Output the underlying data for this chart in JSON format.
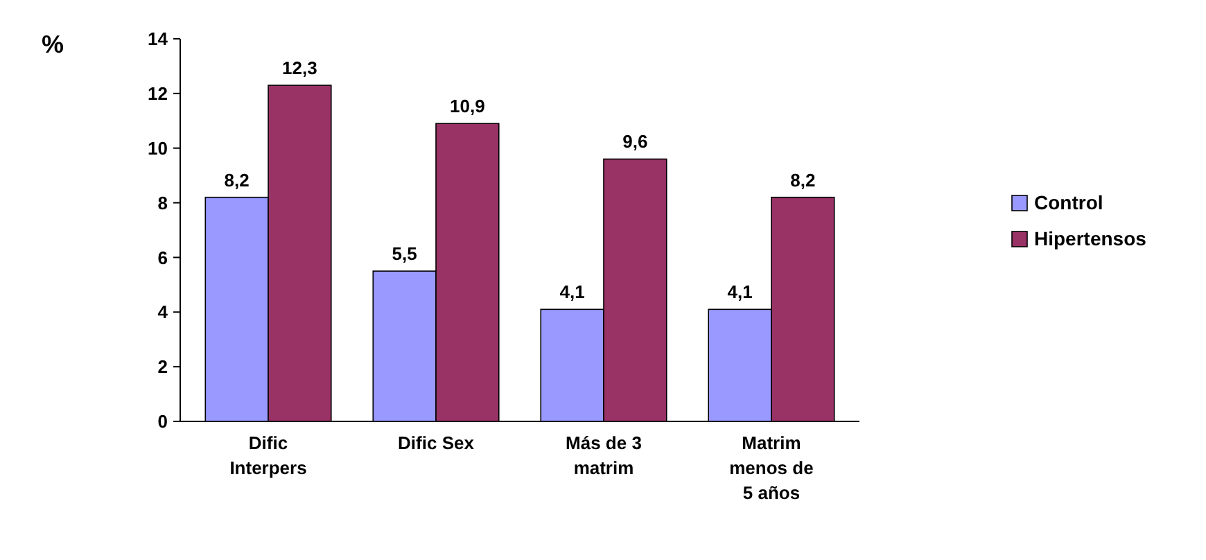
{
  "chart_data": {
    "type": "bar",
    "ylabel": "%",
    "categories": [
      "Dific Interpers",
      "Dific Sex",
      "Más de 3 matrim",
      "Matrim menos de 5 años"
    ],
    "series": [
      {
        "name": "Control",
        "color": "#9999ff",
        "values": [
          8.2,
          5.5,
          4.1,
          4.1
        ],
        "value_labels": [
          "8,2",
          "5,5",
          "4,1",
          "4,1"
        ]
      },
      {
        "name": "Hipertensos",
        "color": "#993366",
        "values": [
          12.3,
          10.9,
          9.6,
          8.2
        ],
        "value_labels": [
          "12,3",
          "10,9",
          "9,6",
          "8,2"
        ]
      }
    ],
    "ylim": [
      0,
      14
    ],
    "yticks": [
      0,
      2,
      4,
      6,
      8,
      10,
      12,
      14
    ],
    "grid": false,
    "legend": "right"
  }
}
